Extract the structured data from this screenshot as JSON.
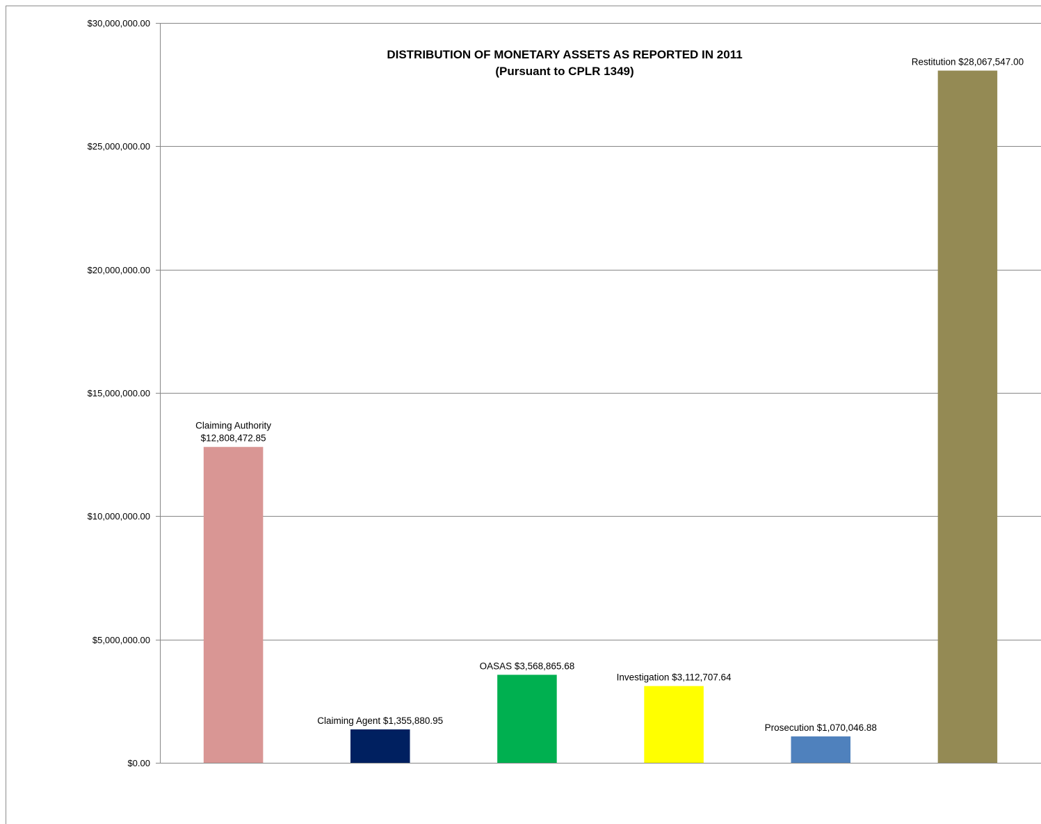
{
  "chart_data": {
    "type": "bar",
    "title": "DISTRIBUTION OF MONETARY ASSETS AS REPORTED IN 2011",
    "subtitle": "(Pursuant to CPLR 1349)",
    "xlabel": "",
    "ylabel": "",
    "ylim": [
      0,
      30000000
    ],
    "y_ticks": [
      0,
      5000000,
      10000000,
      15000000,
      20000000,
      25000000,
      30000000
    ],
    "y_tick_labels": [
      "$0.00",
      "$5,000,000.00",
      "$10,000,000.00",
      "$15,000,000.00",
      "$20,000,000.00",
      "$25,000,000.00",
      "$30,000,000.00"
    ],
    "grid": true,
    "legend": "none",
    "categories": [
      "Claiming Authority",
      "Claiming Agent",
      "OASAS",
      "Investigation",
      "Prosecution",
      "Restitution"
    ],
    "values": [
      12808472.85,
      1355880.95,
      3568865.68,
      3112707.64,
      1070046.88,
      28067547.0
    ],
    "colors": [
      "#D99694",
      "#002060",
      "#00B050",
      "#FFFF00",
      "#4F81BD",
      "#948A54"
    ],
    "data_labels": [
      [
        "Claiming Authority",
        "$12,808,472.85"
      ],
      [
        "Claiming Agent $1,355,880.95"
      ],
      [
        "OASAS $3,568,865.68"
      ],
      [
        "Investigation $3,112,707.64"
      ],
      [
        "Prosecution $1,070,046.88"
      ],
      [
        "Restitution $28,067,547.00"
      ]
    ]
  }
}
